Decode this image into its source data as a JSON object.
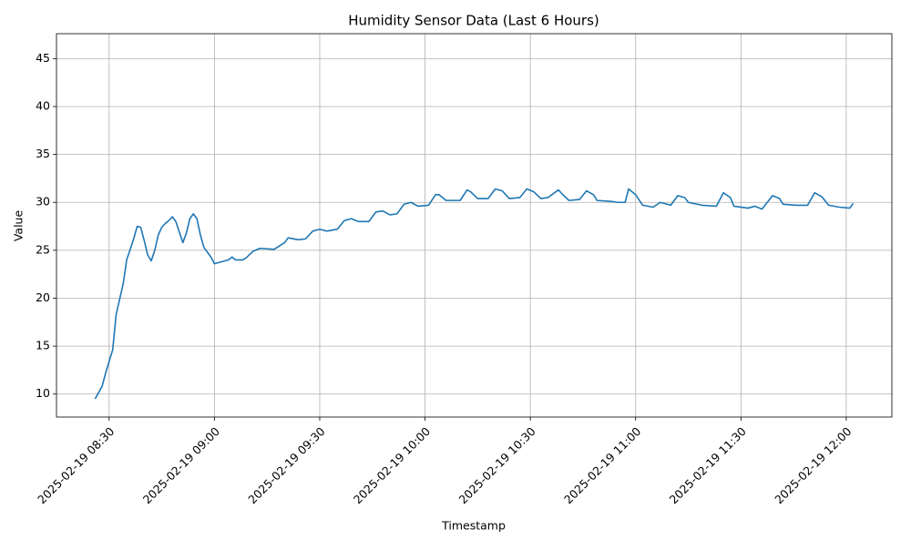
{
  "chart_data": {
    "type": "line",
    "title": "Humidity Sensor Data (Last 6 Hours)",
    "x_label": "Timestamp",
    "y_label": "Value",
    "grid": true,
    "x": [
      "2025-02-19 08:26",
      "2025-02-19 08:28",
      "2025-02-19 08:29",
      "2025-02-19 08:31",
      "2025-02-19 08:32",
      "2025-02-19 08:34",
      "2025-02-19 08:35",
      "2025-02-19 08:37",
      "2025-02-19 08:38",
      "2025-02-19 08:39",
      "2025-02-19 08:40",
      "2025-02-19 08:41",
      "2025-02-19 08:42",
      "2025-02-19 08:43",
      "2025-02-19 08:44",
      "2025-02-19 08:45",
      "2025-02-19 08:46",
      "2025-02-19 08:47",
      "2025-02-19 08:48",
      "2025-02-19 08:49",
      "2025-02-19 08:50",
      "2025-02-19 08:51",
      "2025-02-19 08:52",
      "2025-02-19 08:53",
      "2025-02-19 08:54",
      "2025-02-19 08:55",
      "2025-02-19 08:56",
      "2025-02-19 08:57",
      "2025-02-19 08:59",
      "2025-02-19 09:00",
      "2025-02-19 09:02",
      "2025-02-19 09:04",
      "2025-02-19 09:05",
      "2025-02-19 09:06",
      "2025-02-19 09:08",
      "2025-02-19 09:09",
      "2025-02-19 09:11",
      "2025-02-19 09:13",
      "2025-02-19 09:17",
      "2025-02-19 09:20",
      "2025-02-19 09:21",
      "2025-02-19 09:24",
      "2025-02-19 09:26",
      "2025-02-19 09:28",
      "2025-02-19 09:30",
      "2025-02-19 09:32",
      "2025-02-19 09:35",
      "2025-02-19 09:37",
      "2025-02-19 09:39",
      "2025-02-19 09:41",
      "2025-02-19 09:44",
      "2025-02-19 09:46",
      "2025-02-19 09:48",
      "2025-02-19 09:50",
      "2025-02-19 09:52",
      "2025-02-19 09:54",
      "2025-02-19 09:56",
      "2025-02-19 09:58",
      "2025-02-19 10:01",
      "2025-02-19 10:03",
      "2025-02-19 10:04",
      "2025-02-19 10:06",
      "2025-02-19 10:10",
      "2025-02-19 10:12",
      "2025-02-19 10:13",
      "2025-02-19 10:15",
      "2025-02-19 10:18",
      "2025-02-19 10:20",
      "2025-02-19 10:22",
      "2025-02-19 10:24",
      "2025-02-19 10:27",
      "2025-02-19 10:29",
      "2025-02-19 10:31",
      "2025-02-19 10:33",
      "2025-02-19 10:35",
      "2025-02-19 10:38",
      "2025-02-19 10:39",
      "2025-02-19 10:41",
      "2025-02-19 10:44",
      "2025-02-19 10:46",
      "2025-02-19 10:48",
      "2025-02-19 10:49",
      "2025-02-19 10:53",
      "2025-02-19 10:55",
      "2025-02-19 10:57",
      "2025-02-19 10:58",
      "2025-02-19 11:00",
      "2025-02-19 11:02",
      "2025-02-19 11:05",
      "2025-02-19 11:07",
      "2025-02-19 11:10",
      "2025-02-19 11:12",
      "2025-02-19 11:14",
      "2025-02-19 11:15",
      "2025-02-19 11:19",
      "2025-02-19 11:23",
      "2025-02-19 11:25",
      "2025-02-19 11:27",
      "2025-02-19 11:28",
      "2025-02-19 11:32",
      "2025-02-19 11:34",
      "2025-02-19 11:36",
      "2025-02-19 11:39",
      "2025-02-19 11:41",
      "2025-02-19 11:42",
      "2025-02-19 11:46",
      "2025-02-19 11:49",
      "2025-02-19 11:51",
      "2025-02-19 11:53",
      "2025-02-19 11:55",
      "2025-02-19 11:58",
      "2025-02-19 12:01",
      "2025-02-19 12:02"
    ],
    "values": [
      9.5,
      10.8,
      12.2,
      14.6,
      18.3,
      21.5,
      24.0,
      26.2,
      27.5,
      27.4,
      26.0,
      24.5,
      23.9,
      25.0,
      26.6,
      27.4,
      27.8,
      28.1,
      28.5,
      28.0,
      26.9,
      25.8,
      26.8,
      28.3,
      28.8,
      28.3,
      26.6,
      25.3,
      24.3,
      23.6,
      23.8,
      24.0,
      24.3,
      24.0,
      24.0,
      24.2,
      24.9,
      25.2,
      25.1,
      25.8,
      26.3,
      26.1,
      26.2,
      27.0,
      27.2,
      27.0,
      27.2,
      28.1,
      28.3,
      28.0,
      28.0,
      29.0,
      29.1,
      28.7,
      28.8,
      29.8,
      30.0,
      29.6,
      29.7,
      30.8,
      30.8,
      30.2,
      30.2,
      31.3,
      31.1,
      30.4,
      30.4,
      31.4,
      31.2,
      30.4,
      30.5,
      31.4,
      31.1,
      30.4,
      30.5,
      31.3,
      30.9,
      30.2,
      30.3,
      31.2,
      30.8,
      30.2,
      30.1,
      30.0,
      30.0,
      31.4,
      30.8,
      29.7,
      29.5,
      30.0,
      29.7,
      30.7,
      30.5,
      30.0,
      29.7,
      29.6,
      31.0,
      30.5,
      29.6,
      29.4,
      29.6,
      29.3,
      30.7,
      30.4,
      29.8,
      29.7,
      29.7,
      31.0,
      30.6,
      29.7,
      29.5,
      29.4,
      29.9
    ],
    "color": "#1f77b4",
    "xlim": [
      "2025-02-19 08:15",
      "2025-02-19 12:13"
    ],
    "xticks": [
      "2025-02-19 08:30",
      "2025-02-19 09:00",
      "2025-02-19 09:30",
      "2025-02-19 10:00",
      "2025-02-19 10:30",
      "2025-02-19 11:00",
      "2025-02-19 11:30",
      "2025-02-19 12:00"
    ],
    "ylim": [
      7.6,
      47.6
    ],
    "yticks": [
      10,
      15,
      20,
      25,
      30,
      35,
      40,
      45
    ]
  }
}
